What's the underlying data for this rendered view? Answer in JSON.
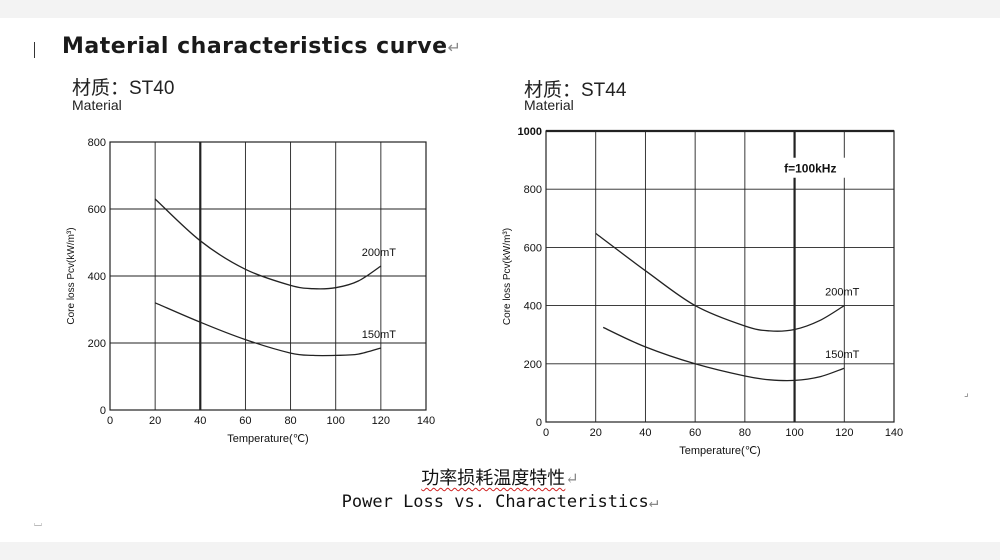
{
  "document": {
    "heading": "Material characteristics curve",
    "paragraph_mark": "↵",
    "caption_cn": "功率损耗温度特性",
    "caption_en": "Power Loss vs. Characteristics"
  },
  "chart_data": [
    {
      "type": "line",
      "material_title": "材质：ST40",
      "material_sub": "Material",
      "title": "",
      "xlabel": "Temperature(℃)",
      "ylabel": "Core loss Pcv(kW/m³)",
      "xlim": [
        0,
        140
      ],
      "ylim": [
        0,
        800
      ],
      "xticks": [
        0,
        20,
        40,
        60,
        80,
        100,
        120,
        140
      ],
      "yticks": [
        0,
        200,
        400,
        600,
        800
      ],
      "annotation": "",
      "series": [
        {
          "name": "200mT",
          "x": [
            20,
            40,
            60,
            80,
            90,
            100,
            110,
            120
          ],
          "y": [
            630,
            505,
            420,
            372,
            362,
            365,
            385,
            430
          ]
        },
        {
          "name": "150mT",
          "x": [
            20,
            40,
            60,
            80,
            90,
            100,
            110,
            120
          ],
          "y": [
            320,
            262,
            210,
            170,
            163,
            163,
            167,
            185
          ]
        }
      ]
    },
    {
      "type": "line",
      "material_title": "材质：ST44",
      "material_sub": "Material",
      "title": "",
      "xlabel": "Temperature(℃)",
      "ylabel": "Core loss Pcv(kW/m³)",
      "xlim": [
        0,
        140
      ],
      "ylim": [
        0,
        1000
      ],
      "xticks": [
        0,
        20,
        40,
        60,
        80,
        100,
        120,
        140
      ],
      "yticks": [
        0,
        200,
        400,
        600,
        800,
        1000
      ],
      "annotation": "f=100kHz",
      "series": [
        {
          "name": "200mT",
          "x": [
            20,
            40,
            60,
            80,
            90,
            100,
            110,
            120
          ],
          "y": [
            648,
            520,
            400,
            330,
            313,
            318,
            348,
            400
          ]
        },
        {
          "name": "150mT",
          "x": [
            23,
            40,
            60,
            80,
            90,
            100,
            110,
            120
          ],
          "y": [
            325,
            258,
            200,
            158,
            145,
            143,
            155,
            185
          ]
        }
      ]
    }
  ]
}
